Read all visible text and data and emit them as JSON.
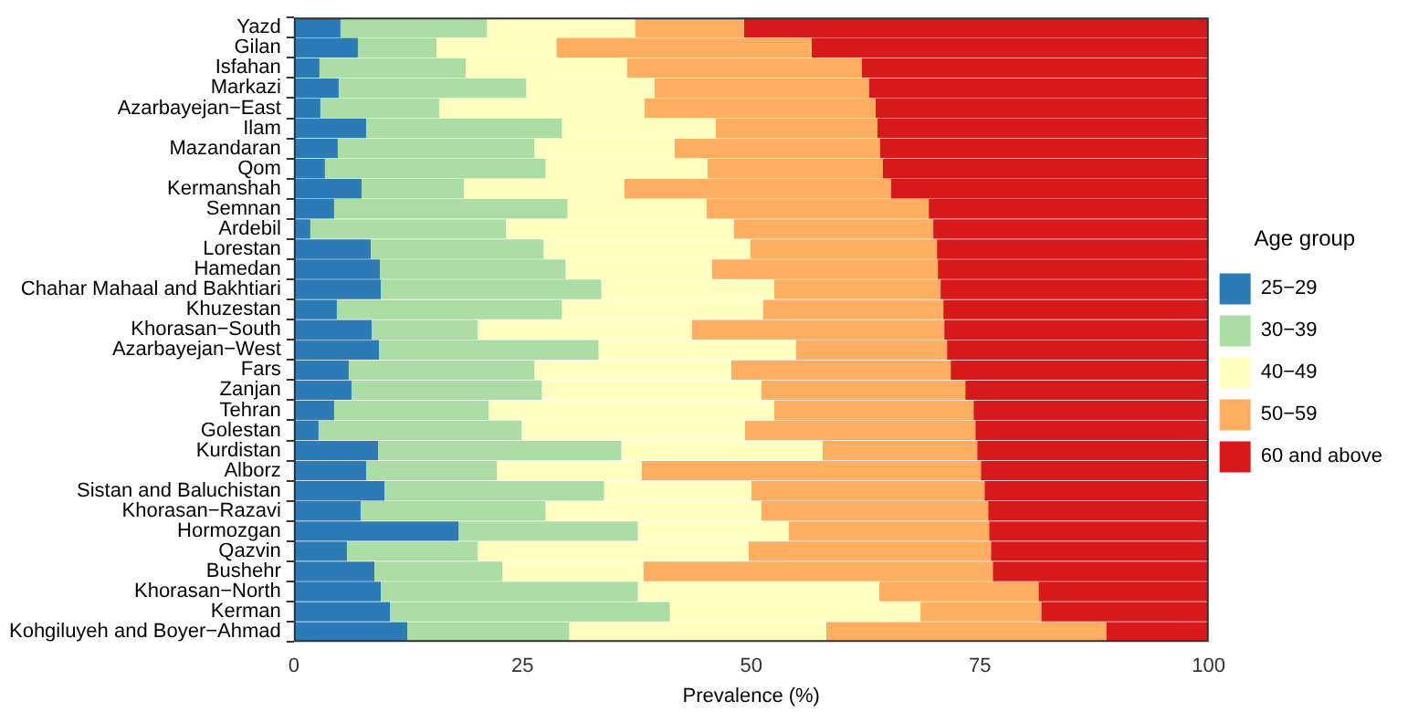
{
  "chart_data": {
    "type": "bar",
    "orientation": "horizontal",
    "stacked": true,
    "xlabel": "Prevalence (%)",
    "legend_title": "Age group",
    "legend": "right",
    "grid": false,
    "xlim": [
      0,
      100
    ],
    "xticks": [
      0,
      25,
      50,
      75,
      100
    ],
    "categories": [
      "Yazd",
      "Gilan",
      "Isfahan",
      "Markazi",
      "Azarbayejan−East",
      "Ilam",
      "Mazandaran",
      "Qom",
      "Kermanshah",
      "Semnan",
      "Ardebil",
      "Lorestan",
      "Hamedan",
      "Chahar Mahaal and Bakhtiari",
      "Khuzestan",
      "Khorasan−South",
      "Azarbayejan−West",
      "Fars",
      "Zanjan",
      "Tehran",
      "Golestan",
      "Kurdistan",
      "Alborz",
      "Sistan and Baluchistan",
      "Khorasan−Razavi",
      "Hormozgan",
      "Qazvin",
      "Bushehr",
      "Khorasan−North",
      "Kerman",
      "Kohgiluyeh and Boyer−Ahmad"
    ],
    "series": [
      {
        "name": "25−29",
        "color": "#2c7bb6",
        "values": [
          5.1,
          7.0,
          2.8,
          4.9,
          2.9,
          7.9,
          4.8,
          3.4,
          7.4,
          4.4,
          1.8,
          8.4,
          9.4,
          9.5,
          4.7,
          8.5,
          9.3,
          6.0,
          6.3,
          4.4,
          2.7,
          9.2,
          7.9,
          9.9,
          7.3,
          18.0,
          5.8,
          8.8,
          9.5,
          10.5,
          12.4
        ]
      },
      {
        "name": "30−39",
        "color": "#abdda4",
        "values": [
          16.0,
          8.6,
          16.0,
          20.5,
          13.0,
          21.4,
          21.5,
          24.1,
          11.2,
          25.5,
          21.4,
          18.9,
          20.3,
          24.1,
          24.6,
          11.6,
          24.0,
          20.3,
          20.8,
          16.9,
          22.2,
          26.6,
          14.3,
          24.0,
          20.2,
          19.6,
          14.3,
          14.0,
          28.1,
          30.6,
          17.7
        ]
      },
      {
        "name": "40−49",
        "color": "#ffffbf",
        "values": [
          16.2,
          13.1,
          17.6,
          14.0,
          22.4,
          16.8,
          15.3,
          17.7,
          17.5,
          15.2,
          24.9,
          22.6,
          16.0,
          18.9,
          22.0,
          23.4,
          21.6,
          21.5,
          24.0,
          31.2,
          24.4,
          22.0,
          15.8,
          16.1,
          23.6,
          16.5,
          29.6,
          15.4,
          26.4,
          27.4,
          28.1
        ]
      },
      {
        "name": "50−59",
        "color": "#fdae61",
        "values": [
          11.9,
          27.9,
          25.7,
          23.5,
          25.3,
          17.7,
          22.5,
          19.2,
          29.2,
          24.3,
          21.8,
          20.4,
          24.7,
          18.2,
          19.7,
          27.6,
          16.5,
          24.0,
          22.3,
          21.8,
          25.2,
          16.9,
          37.1,
          25.5,
          24.8,
          21.9,
          26.5,
          38.2,
          17.4,
          13.2,
          30.6
        ]
      },
      {
        "name": "60 and above",
        "color": "#d7191c",
        "values": [
          50.8,
          43.4,
          37.9,
          37.1,
          36.4,
          36.2,
          35.9,
          35.6,
          34.7,
          30.6,
          30.1,
          29.7,
          29.6,
          29.3,
          29.0,
          28.9,
          28.6,
          28.2,
          26.6,
          25.7,
          25.5,
          25.3,
          24.9,
          24.5,
          24.1,
          24.0,
          23.8,
          23.6,
          18.6,
          18.3,
          11.2
        ]
      }
    ]
  }
}
